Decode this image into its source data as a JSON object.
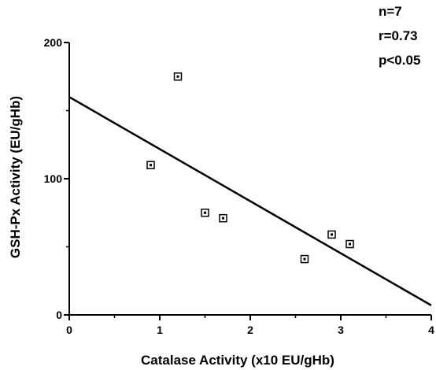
{
  "chart_data": {
    "type": "scatter",
    "xlabel": "Catalase Activity (x10  EU/gHb)",
    "ylabel": "GSH-Px   Activity   (EU/gHb)",
    "xlim": [
      0,
      4
    ],
    "ylim": [
      0,
      200
    ],
    "x_ticks": [
      "0",
      "1",
      "2",
      "3",
      "4"
    ],
    "y_ticks": [
      "0",
      "100",
      "200"
    ],
    "points": [
      {
        "x": 0.9,
        "y": 110
      },
      {
        "x": 1.2,
        "y": 175
      },
      {
        "x": 1.5,
        "y": 75
      },
      {
        "x": 1.7,
        "y": 71
      },
      {
        "x": 2.6,
        "y": 41
      },
      {
        "x": 2.9,
        "y": 59
      },
      {
        "x": 3.1,
        "y": 52
      }
    ],
    "regression_line": {
      "x": [
        0,
        4
      ],
      "y": [
        160,
        7
      ]
    },
    "annotations": [
      "n=7",
      "r=0.73",
      "p<0.05"
    ],
    "grid": false
  }
}
